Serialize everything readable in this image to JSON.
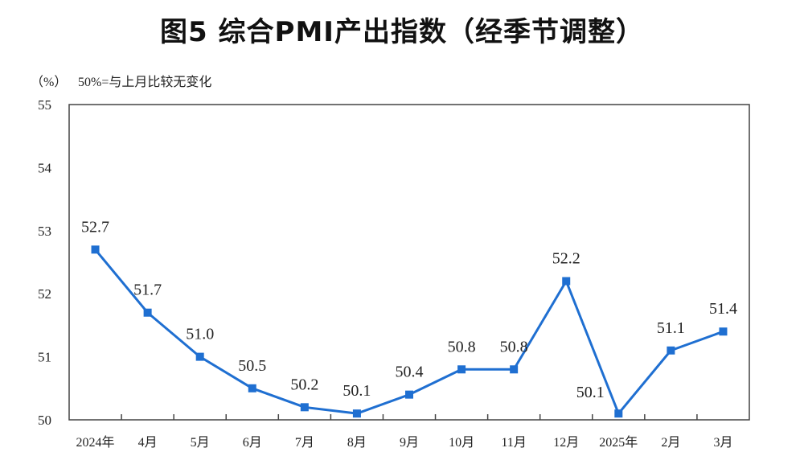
{
  "chart_data": {
    "type": "line",
    "title": "图5  综合PMI产出指数（经季节调整）",
    "ylabel": "（%）",
    "annotation": "50%=与上月比较无变化",
    "categories": [
      "2024年",
      "4月",
      "5月",
      "6月",
      "7月",
      "8月",
      "9月",
      "10月",
      "11月",
      "12月",
      "2025年",
      "2月",
      "3月"
    ],
    "values": [
      52.7,
      51.7,
      51.0,
      50.5,
      50.2,
      50.1,
      50.4,
      50.8,
      50.8,
      52.2,
      50.1,
      51.1,
      51.4
    ],
    "data_labels": [
      "52.7",
      "51.7",
      "51.0",
      "50.5",
      "50.2",
      "50.1",
      "50.4",
      "50.8",
      "50.8",
      "52.2",
      "50.1",
      "51.1",
      "51.4"
    ],
    "ylim": [
      50,
      55
    ],
    "yticks": [
      "50",
      "51",
      "52",
      "53",
      "54",
      "55"
    ],
    "grid": false,
    "legend": "none",
    "line_color": "#1F6FD1"
  }
}
